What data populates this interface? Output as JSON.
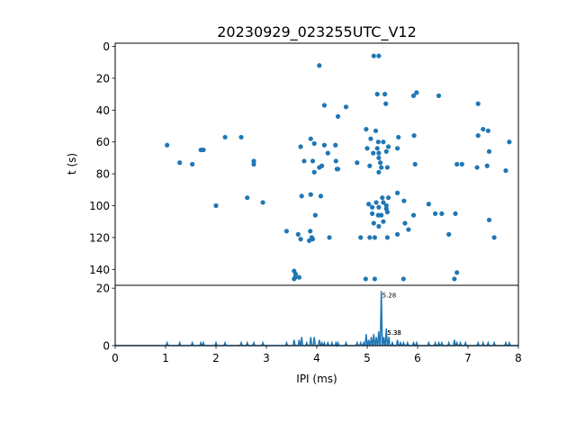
{
  "chart_data": [
    {
      "type": "scatter",
      "title": "20230929_023255UTC_V12",
      "xlabel": "",
      "ylabel": "t (s)",
      "xlim": [
        0,
        8
      ],
      "ylim": [
        150,
        -2
      ],
      "y_inverted": true,
      "yticks": [
        "0",
        "20",
        "40",
        "60",
        "80",
        "100",
        "120",
        "140"
      ],
      "marker_color": "#1f77b4",
      "points": [
        [
          4.05,
          12
        ],
        [
          5.13,
          6
        ],
        [
          5.23,
          6
        ],
        [
          5.98,
          29
        ],
        [
          5.2,
          30
        ],
        [
          5.35,
          30
        ],
        [
          5.92,
          31
        ],
        [
          6.42,
          31
        ],
        [
          5.37,
          36
        ],
        [
          7.2,
          36
        ],
        [
          4.15,
          37
        ],
        [
          4.58,
          38
        ],
        [
          4.42,
          44
        ],
        [
          4.98,
          52
        ],
        [
          5.17,
          53
        ],
        [
          7.3,
          52
        ],
        [
          7.4,
          53
        ],
        [
          7.2,
          56
        ],
        [
          5.93,
          56
        ],
        [
          2.18,
          57
        ],
        [
          2.5,
          57
        ],
        [
          3.88,
          58
        ],
        [
          5.07,
          58
        ],
        [
          5.62,
          57
        ],
        [
          1.03,
          62
        ],
        [
          3.95,
          61
        ],
        [
          5.22,
          60
        ],
        [
          5.32,
          60
        ],
        [
          7.82,
          60
        ],
        [
          3.68,
          63
        ],
        [
          4.15,
          62
        ],
        [
          4.37,
          62
        ],
        [
          5.0,
          64
        ],
        [
          5.2,
          64
        ],
        [
          5.42,
          63
        ],
        [
          5.6,
          64
        ],
        [
          1.7,
          65
        ],
        [
          1.75,
          65
        ],
        [
          4.22,
          67
        ],
        [
          5.12,
          67
        ],
        [
          5.23,
          67
        ],
        [
          5.38,
          66
        ],
        [
          7.42,
          66
        ],
        [
          5.23,
          70
        ],
        [
          3.75,
          72
        ],
        [
          3.92,
          72
        ],
        [
          4.38,
          72
        ],
        [
          5.26,
          73
        ],
        [
          1.28,
          73
        ],
        [
          1.53,
          74
        ],
        [
          2.75,
          72
        ],
        [
          2.75,
          74
        ],
        [
          4.8,
          73
        ],
        [
          5.95,
          74
        ],
        [
          6.78,
          74
        ],
        [
          6.88,
          74
        ],
        [
          4.1,
          75
        ],
        [
          5.05,
          75
        ],
        [
          5.28,
          76
        ],
        [
          4.05,
          76
        ],
        [
          4.42,
          77
        ],
        [
          4.4,
          77
        ],
        [
          5.4,
          76
        ],
        [
          7.18,
          76
        ],
        [
          7.38,
          75
        ],
        [
          3.95,
          79
        ],
        [
          5.23,
          79
        ],
        [
          7.75,
          78
        ],
        [
          5.6,
          92
        ],
        [
          3.7,
          94
        ],
        [
          3.88,
          93
        ],
        [
          4.08,
          94
        ],
        [
          2.62,
          95
        ],
        [
          5.3,
          95
        ],
        [
          5.42,
          95
        ],
        [
          2.93,
          98
        ],
        [
          5.73,
          97
        ],
        [
          5.03,
          99
        ],
        [
          5.18,
          98
        ],
        [
          5.32,
          98
        ],
        [
          5.38,
          100
        ],
        [
          6.22,
          99
        ],
        [
          2.0,
          100
        ],
        [
          5.1,
          101
        ],
        [
          5.23,
          101
        ],
        [
          5.38,
          102
        ],
        [
          5.92,
          106
        ],
        [
          6.35,
          105
        ],
        [
          6.48,
          105
        ],
        [
          6.75,
          105
        ],
        [
          3.97,
          106
        ],
        [
          5.1,
          105
        ],
        [
          5.22,
          106
        ],
        [
          5.28,
          106
        ],
        [
          5.4,
          104
        ],
        [
          7.42,
          109
        ],
        [
          5.32,
          110
        ],
        [
          5.13,
          111
        ],
        [
          5.75,
          111
        ],
        [
          5.23,
          113
        ],
        [
          3.4,
          116
        ],
        [
          3.87,
          116
        ],
        [
          5.6,
          118
        ],
        [
          5.82,
          115
        ],
        [
          6.62,
          118
        ],
        [
          3.63,
          118
        ],
        [
          3.9,
          120
        ],
        [
          4.25,
          120
        ],
        [
          4.87,
          120
        ],
        [
          5.05,
          120
        ],
        [
          5.15,
          120
        ],
        [
          5.4,
          120
        ],
        [
          7.52,
          120
        ],
        [
          3.68,
          121
        ],
        [
          3.92,
          121
        ],
        [
          3.85,
          122
        ],
        [
          3.55,
          141
        ],
        [
          3.58,
          143
        ],
        [
          3.57,
          145
        ],
        [
          3.65,
          145
        ],
        [
          3.55,
          146
        ],
        [
          6.78,
          142
        ],
        [
          6.73,
          146
        ],
        [
          4.97,
          146
        ],
        [
          5.15,
          146
        ],
        [
          5.72,
          146
        ]
      ]
    },
    {
      "type": "line",
      "title": "",
      "xlabel": "IPI (ms)",
      "ylabel": "",
      "xlim": [
        0,
        8
      ],
      "ylim": [
        0,
        21
      ],
      "xticks": [
        "0",
        "1",
        "2",
        "3",
        "4",
        "5",
        "6",
        "7",
        "8"
      ],
      "yticks": [
        "0",
        "20"
      ],
      "line_color": "#1f77b4",
      "peaks": [
        [
          1.03,
          1
        ],
        [
          1.28,
          1
        ],
        [
          1.53,
          1
        ],
        [
          1.7,
          1
        ],
        [
          1.75,
          1
        ],
        [
          2.0,
          1
        ],
        [
          2.18,
          1
        ],
        [
          2.5,
          1
        ],
        [
          2.62,
          1
        ],
        [
          2.75,
          1
        ],
        [
          2.93,
          1
        ],
        [
          3.4,
          1
        ],
        [
          3.55,
          2
        ],
        [
          3.65,
          2
        ],
        [
          3.7,
          3
        ],
        [
          3.8,
          1
        ],
        [
          3.88,
          3
        ],
        [
          3.95,
          3
        ],
        [
          4.05,
          2
        ],
        [
          4.1,
          1
        ],
        [
          4.15,
          1
        ],
        [
          4.22,
          1
        ],
        [
          4.3,
          1
        ],
        [
          4.38,
          1
        ],
        [
          4.42,
          1
        ],
        [
          4.58,
          1
        ],
        [
          4.8,
          1
        ],
        [
          4.87,
          1
        ],
        [
          4.93,
          1
        ],
        [
          4.98,
          4
        ],
        [
          5.03,
          2
        ],
        [
          5.08,
          3
        ],
        [
          5.13,
          4
        ],
        [
          5.18,
          3
        ],
        [
          5.23,
          5
        ],
        [
          5.28,
          19
        ],
        [
          5.33,
          3
        ],
        [
          5.38,
          6
        ],
        [
          5.43,
          3
        ],
        [
          5.5,
          1
        ],
        [
          5.6,
          2
        ],
        [
          5.66,
          1
        ],
        [
          5.72,
          1
        ],
        [
          5.8,
          1
        ],
        [
          5.92,
          1
        ],
        [
          5.98,
          1
        ],
        [
          6.22,
          1
        ],
        [
          6.35,
          1
        ],
        [
          6.42,
          1
        ],
        [
          6.48,
          1
        ],
        [
          6.62,
          1
        ],
        [
          6.73,
          2
        ],
        [
          6.78,
          1
        ],
        [
          6.85,
          1
        ],
        [
          6.95,
          1
        ],
        [
          7.2,
          1
        ],
        [
          7.3,
          1
        ],
        [
          7.4,
          1
        ],
        [
          7.52,
          1
        ],
        [
          7.75,
          1
        ],
        [
          7.82,
          1
        ]
      ],
      "annotations": [
        {
          "x": 5.28,
          "y": 19,
          "text": "5.28"
        },
        {
          "x": 5.38,
          "y": 6,
          "text": "5.38"
        },
        {
          "x": 5.38,
          "y": 6,
          "text": "5.33"
        }
      ]
    }
  ]
}
